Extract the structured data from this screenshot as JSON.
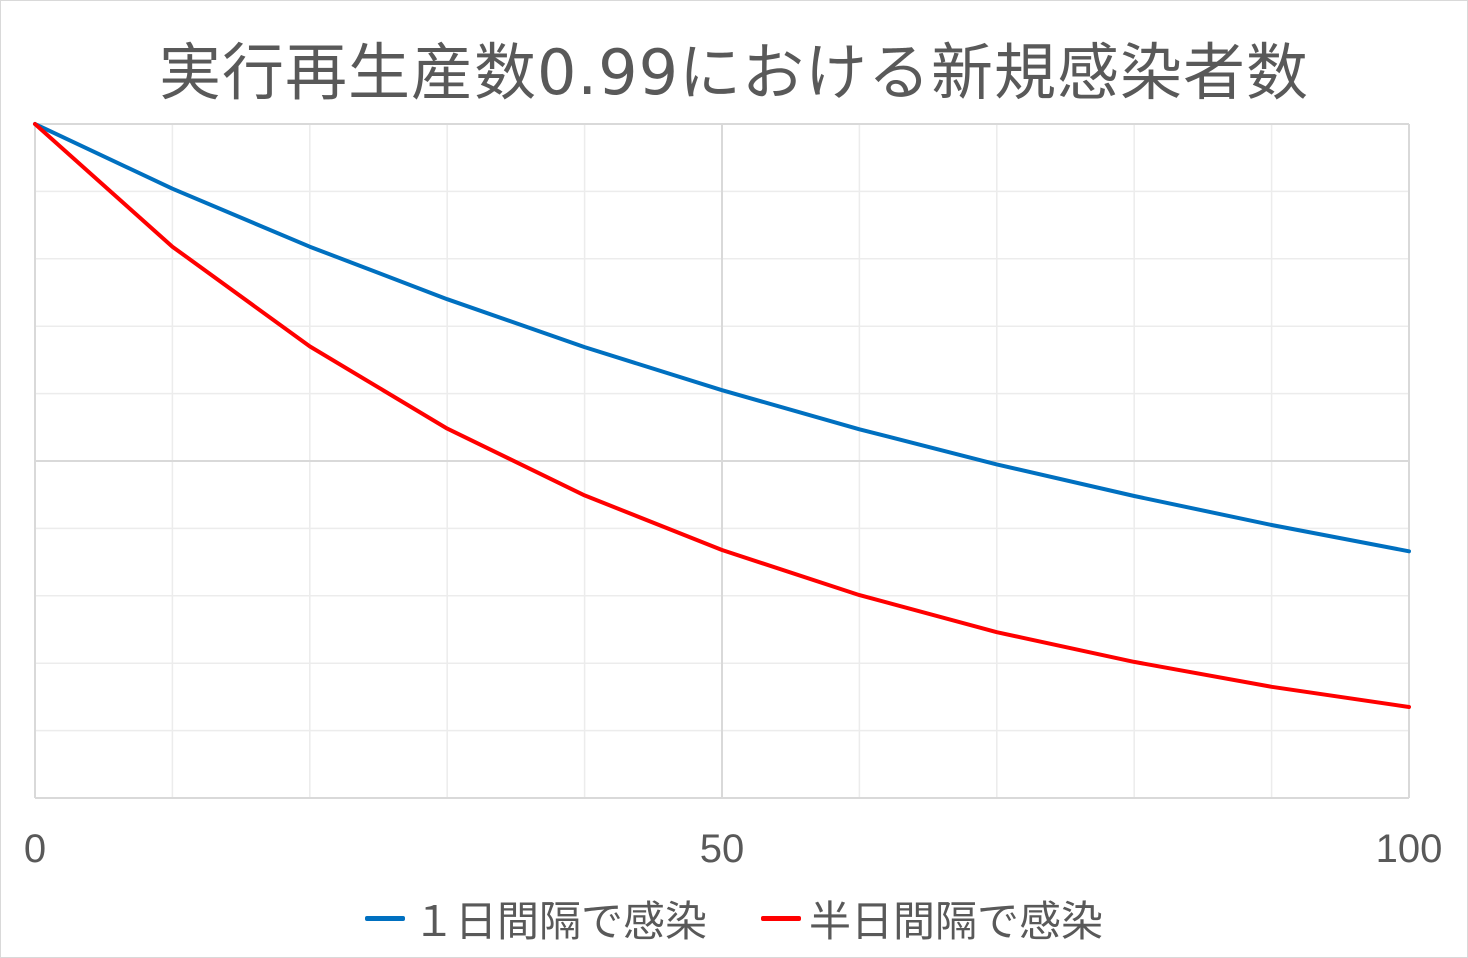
{
  "chart_title": "実行再生産数0.99における新規感染者数",
  "chart_data": {
    "type": "line",
    "title": "実行再生産数0.99における新規感染者数",
    "xlabel": "",
    "ylabel": "",
    "xlim": [
      0,
      100
    ],
    "x_ticks": [
      0,
      50,
      100
    ],
    "x_tick_labels": [
      "0",
      "50",
      "100"
    ],
    "y_tick_labels": [],
    "ylim": [
      0,
      1
    ],
    "grid": {
      "vertical": true,
      "horizontal": true
    },
    "legend_position": "bottom",
    "series": [
      {
        "name": "１日間隔で感染",
        "color": "#0070C0",
        "x": [
          0,
          10,
          20,
          30,
          40,
          50,
          60,
          70,
          80,
          90,
          100
        ],
        "y": [
          1.0,
          0.904,
          0.818,
          0.74,
          0.669,
          0.605,
          0.547,
          0.495,
          0.448,
          0.405,
          0.366
        ]
      },
      {
        "name": "半日間隔で感染",
        "color": "#FF0000",
        "x": [
          0,
          10,
          20,
          30,
          40,
          50,
          60,
          70,
          80,
          90,
          100
        ],
        "y": [
          1.0,
          0.818,
          0.67,
          0.548,
          0.449,
          0.368,
          0.301,
          0.246,
          0.202,
          0.165,
          0.135
        ]
      }
    ]
  }
}
